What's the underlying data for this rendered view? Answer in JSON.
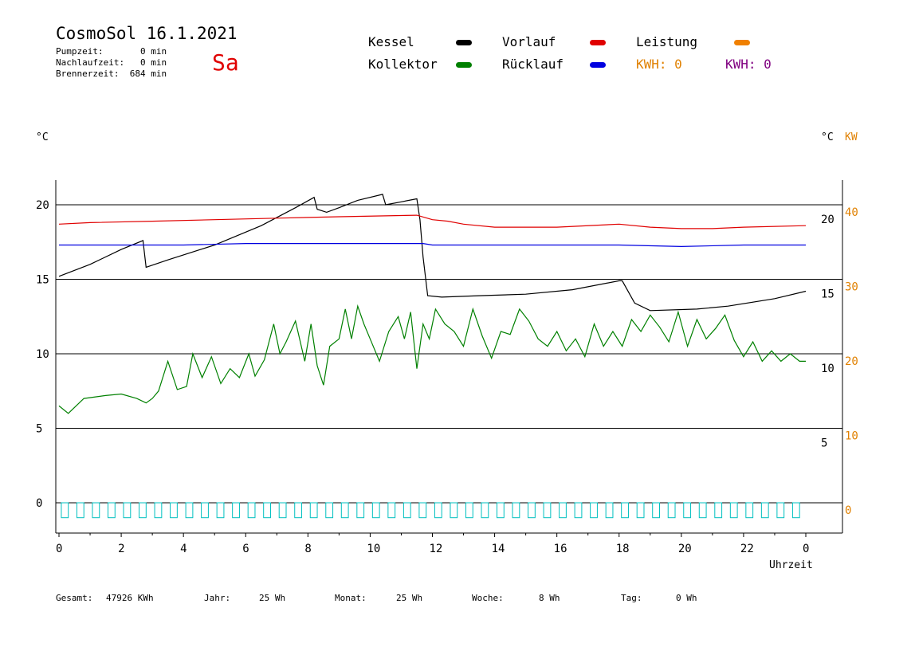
{
  "header": {
    "title": "CosmoSol 16.1.2021",
    "day": "Sa",
    "pumpzeit": "Pumpzeit:       0 min",
    "nachlaufzeit": "Nachlaufzeit:   0 min",
    "brennerzeit": "Brennerzeit:  684 min"
  },
  "legend": {
    "kessel": {
      "label": "Kessel",
      "color": "#000000"
    },
    "vorlauf": {
      "label": "Vorlauf",
      "color": "#e00000"
    },
    "leistung": {
      "label": "Leistung",
      "color": "#f08000"
    },
    "kollektor": {
      "label": "Kollektor",
      "color": "#008000"
    },
    "ruecklauf": {
      "label": "Rücklauf",
      "color": "#0000e0"
    },
    "kwh_orange": {
      "label": "KWH: 0",
      "color": "#e08000"
    },
    "kwh_purple": {
      "label": "KWH: 0",
      "color": "#800080"
    }
  },
  "axes": {
    "left_unit": "°C",
    "right_unit": "°C",
    "right_unit2": "KW",
    "xlabel": "Uhrzeit"
  },
  "footer": {
    "gesamt_label": "Gesamt:",
    "gesamt_value": "47926 KWh",
    "jahr_label": "Jahr:",
    "jahr_value": "25 Wh",
    "monat_label": "Monat:",
    "monat_value": "25 Wh",
    "woche_label": "Woche:",
    "woche_value": "8 Wh",
    "tag_label": "Tag:",
    "tag_value": "0 Wh"
  },
  "chart_data": {
    "type": "line",
    "x_unit": "h",
    "xlim": [
      0,
      24
    ],
    "ylim": [
      -1.5,
      22
    ],
    "x_ticks": [
      "0",
      "2",
      "4",
      "6",
      "8",
      "10",
      "12",
      "14",
      "16",
      "18",
      "20",
      "22",
      "0"
    ],
    "y_ticks_left": [
      "0",
      "5",
      "10",
      "15",
      "20"
    ],
    "y_ticks_right_inner": [
      "5",
      "10",
      "15",
      "20"
    ],
    "y_ticks_right_kw": [
      "0",
      "10",
      "20",
      "30",
      "40"
    ],
    "grid": true,
    "series": [
      {
        "name": "Kessel",
        "color": "#000000",
        "x": [
          0,
          1,
          2,
          2.7,
          2.8,
          3.5,
          5,
          6.5,
          7.6,
          8.2,
          8.3,
          8.6,
          9.0,
          9.6,
          10.4,
          10.5,
          11.0,
          11.5,
          11.6,
          11.7,
          11.85,
          12.3,
          13.5,
          15,
          16.5,
          18,
          18.1,
          18.5,
          19,
          20.5,
          21.5,
          23,
          24
        ],
        "y": [
          15.2,
          16.0,
          17.0,
          17.6,
          15.8,
          16.3,
          17.3,
          18.6,
          19.8,
          20.5,
          19.7,
          19.5,
          19.8,
          20.3,
          20.7,
          20.0,
          20.2,
          20.4,
          19.0,
          16.5,
          13.9,
          13.8,
          13.9,
          14.0,
          14.3,
          14.9,
          14.9,
          13.4,
          12.9,
          13.0,
          13.2,
          13.7,
          14.2
        ]
      },
      {
        "name": "Vorlauf",
        "color": "#e00000",
        "x": [
          0,
          1,
          3,
          5,
          7,
          9,
          11.5,
          12,
          12.5,
          13,
          14,
          16,
          18,
          19,
          20,
          21,
          22,
          24
        ],
        "y": [
          18.7,
          18.8,
          18.9,
          19.0,
          19.1,
          19.2,
          19.3,
          19.0,
          18.9,
          18.7,
          18.5,
          18.5,
          18.7,
          18.5,
          18.4,
          18.4,
          18.5,
          18.6
        ]
      },
      {
        "name": "Rücklauf",
        "color": "#0000e0",
        "x": [
          0,
          2,
          4,
          6,
          8,
          10,
          11.7,
          12,
          14,
          16,
          18,
          20,
          22,
          24
        ],
        "y": [
          17.3,
          17.3,
          17.3,
          17.4,
          17.4,
          17.4,
          17.4,
          17.3,
          17.3,
          17.3,
          17.3,
          17.2,
          17.3,
          17.3
        ]
      },
      {
        "name": "Kollektor",
        "color": "#008000",
        "x": [
          0,
          0.3,
          0.8,
          1.5,
          2.0,
          2.5,
          2.8,
          3.0,
          3.2,
          3.5,
          3.8,
          4.1,
          4.3,
          4.6,
          4.9,
          5.2,
          5.5,
          5.8,
          6.1,
          6.3,
          6.6,
          6.9,
          7.1,
          7.3,
          7.6,
          7.9,
          8.1,
          8.3,
          8.5,
          8.7,
          9.0,
          9.2,
          9.4,
          9.6,
          9.8,
          10.0,
          10.3,
          10.6,
          10.9,
          11.1,
          11.3,
          11.5,
          11.7,
          11.9,
          12.1,
          12.4,
          12.7,
          13.0,
          13.3,
          13.6,
          13.9,
          14.2,
          14.5,
          14.8,
          15.1,
          15.4,
          15.7,
          16.0,
          16.3,
          16.6,
          16.9,
          17.2,
          17.5,
          17.8,
          18.1,
          18.4,
          18.7,
          19.0,
          19.3,
          19.6,
          19.9,
          20.2,
          20.5,
          20.8,
          21.1,
          21.4,
          21.7,
          22.0,
          22.3,
          22.6,
          22.9,
          23.2,
          23.5,
          23.8,
          24.0
        ],
        "y": [
          6.5,
          6.0,
          7.0,
          7.2,
          7.3,
          7.0,
          6.7,
          7.0,
          7.5,
          9.5,
          7.6,
          7.8,
          10.0,
          8.4,
          9.8,
          8.0,
          9.0,
          8.4,
          10.0,
          8.5,
          9.6,
          12.0,
          10.0,
          10.8,
          12.2,
          9.5,
          12.0,
          9.2,
          7.9,
          10.5,
          11.0,
          13.0,
          11.0,
          13.2,
          12.0,
          11.0,
          9.5,
          11.5,
          12.5,
          11.0,
          12.8,
          9.0,
          12.0,
          11.0,
          13.0,
          12.0,
          11.5,
          10.5,
          13.0,
          11.2,
          9.7,
          11.5,
          11.3,
          13.0,
          12.2,
          11.0,
          10.5,
          11.5,
          10.2,
          11.0,
          9.8,
          12.0,
          10.5,
          11.5,
          10.5,
          12.3,
          11.5,
          12.6,
          11.8,
          10.8,
          12.8,
          10.5,
          12.3,
          11.0,
          11.7,
          12.6,
          10.9,
          9.8,
          10.8,
          9.5,
          10.2,
          9.5,
          10.0,
          9.5,
          9.5
        ]
      }
    ],
    "pump_markers": {
      "color": "#00c0c0",
      "y_range": [
        -1.0,
        0.0
      ],
      "count": 48
    }
  }
}
